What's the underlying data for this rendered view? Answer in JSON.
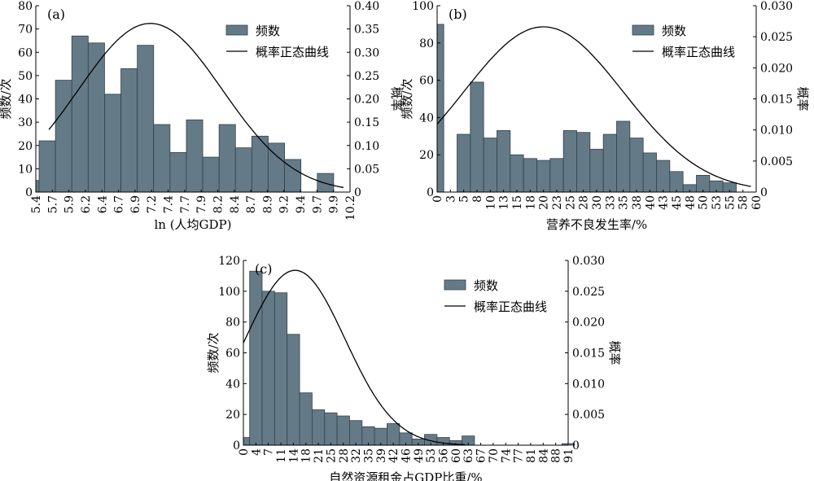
{
  "figure": {
    "series_names": {
      "bars": "频数",
      "curve": "概率正态曲线"
    },
    "bar_color": "#647a87",
    "bar_edge_color": "#33414a",
    "curve_color": "#000000"
  },
  "chart_data": [
    {
      "id": "a",
      "type": "bar",
      "panel_label": "(a)",
      "xlabel": "ln (人均GDP)",
      "ylabel": "频数/次",
      "ylabel2": "概率",
      "ylim": [
        0,
        80
      ],
      "yticks": [
        0,
        10,
        20,
        30,
        40,
        50,
        60,
        70,
        80
      ],
      "y2lim": [
        0,
        0.4
      ],
      "y2ticks": [
        "0",
        "0.05",
        "0.10",
        "0.15",
        "0.20",
        "0.25",
        "0.30",
        "0.35",
        "0.40"
      ],
      "xlim": [
        5.4,
        10.2
      ],
      "xticks": [
        "5.4",
        "5.7",
        "5.9",
        "6.2",
        "6.4",
        "6.7",
        "6.9",
        "7.2",
        "7.4",
        "7.7",
        "7.9",
        "8.2",
        "8.4",
        "8.7",
        "8.9",
        "9.2",
        "9.4",
        "9.7",
        "9.9",
        "10.2"
      ],
      "bin_edges": [
        5.2,
        5.45,
        5.7,
        5.95,
        6.2,
        6.45,
        6.7,
        6.95,
        7.2,
        7.45,
        7.7,
        7.95,
        8.2,
        8.45,
        8.7,
        8.95,
        9.2,
        9.45,
        9.7,
        9.95,
        10.2
      ],
      "values": [
        5,
        22,
        48,
        67,
        64,
        42,
        53,
        63,
        29,
        17,
        31,
        15,
        29,
        19,
        24,
        21,
        14,
        0,
        8,
        0
      ],
      "normal_curve": {
        "mean": 7.15,
        "std": 1.1,
        "peak": 0.362,
        "x_range": [
          5.6,
          10.1
        ]
      },
      "legend_position": "top-right"
    },
    {
      "id": "b",
      "type": "bar",
      "panel_label": "(b)",
      "xlabel": "营养不良发生率/%",
      "ylabel": "频数/次",
      "ylabel2": "概率",
      "ylim": [
        0,
        100
      ],
      "yticks": [
        0,
        20,
        40,
        60,
        80,
        100
      ],
      "y2lim": [
        0,
        0.03
      ],
      "y2ticks": [
        "0",
        "0.005",
        "0.010",
        "0.015",
        "0.020",
        "0.025",
        "0.030"
      ],
      "xlim": [
        0,
        60
      ],
      "xticks": [
        "0",
        "3",
        "5",
        "8",
        "10",
        "13",
        "15",
        "18",
        "20",
        "23",
        "25",
        "28",
        "30",
        "33",
        "35",
        "38",
        "40",
        "43",
        "45",
        "48",
        "50",
        "53",
        "55",
        "58",
        "60"
      ],
      "bin_edges": [
        -1.25,
        1.25,
        3.75,
        6.25,
        8.75,
        11.25,
        13.75,
        16.25,
        18.75,
        21.25,
        23.75,
        26.25,
        28.75,
        31.25,
        33.75,
        36.25,
        38.75,
        41.25,
        43.75,
        46.25,
        48.75,
        51.25,
        53.75,
        56.25,
        58.75
      ],
      "values": [
        90,
        0,
        31,
        59,
        29,
        33,
        20,
        18,
        17,
        18,
        33,
        32,
        23,
        31,
        38,
        29,
        21,
        17,
        11,
        4,
        9,
        6,
        5,
        0
      ],
      "normal_curve": {
        "mean": 20,
        "std": 15,
        "peak": 0.0266,
        "x_range": [
          0,
          59
        ]
      },
      "legend_position": "top-right"
    },
    {
      "id": "c",
      "type": "bar",
      "panel_label": "(c)",
      "xlabel": "自然资源租金占GDP比重/%",
      "ylabel": "频数/次",
      "ylabel2": "概率",
      "ylim": [
        0,
        120
      ],
      "yticks": [
        0,
        20,
        40,
        60,
        80,
        100,
        120
      ],
      "y2lim": [
        0,
        0.03
      ],
      "y2ticks": [
        "0",
        "0.005",
        "0.010",
        "0.015",
        "0.020",
        "0.025",
        "0.030"
      ],
      "xlim": [
        0,
        91
      ],
      "xticks": [
        "0",
        "4",
        "7",
        "11",
        "14",
        "18",
        "21",
        "25",
        "28",
        "32",
        "35",
        "39",
        "42",
        "46",
        "49",
        "53",
        "56",
        "60",
        "63",
        "67",
        "70",
        "74",
        "77",
        "81",
        "84",
        "88",
        "91"
      ],
      "bin_edges": [
        -1.75,
        1.75,
        5.25,
        8.75,
        12.25,
        15.75,
        19.25,
        22.75,
        26.25,
        29.75,
        33.25,
        36.75,
        40.25,
        43.75,
        47.25,
        50.75,
        54.25,
        57.75,
        61.25,
        64.75,
        68.25,
        71.75,
        75.25,
        78.75,
        82.25,
        85.75,
        89.25,
        92.75
      ],
      "values": [
        5,
        113,
        100,
        99,
        72,
        34,
        23,
        21,
        19,
        16,
        12,
        11,
        14,
        8,
        4,
        7,
        5,
        3,
        6,
        0,
        0,
        0,
        0,
        0,
        0,
        0,
        1
      ],
      "normal_curve": {
        "mean": 14.5,
        "std": 14.0,
        "peak": 0.0284,
        "x_range": [
          0,
          62
        ]
      },
      "legend_position": "top-right"
    }
  ]
}
